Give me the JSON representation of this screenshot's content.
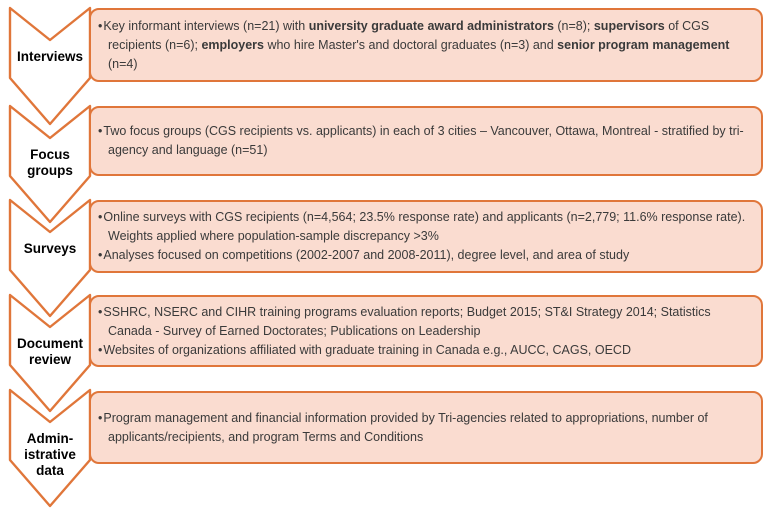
{
  "colors": {
    "outline": "#e0763a",
    "box_fill": "#fadcd0",
    "body_text": "#3a3a3a",
    "label_text": "#000000"
  },
  "rows": [
    {
      "label": "Interviews",
      "bullets": [
        {
          "segments": [
            {
              "text": "Key informant interviews (n=21) with ",
              "bold": false
            },
            {
              "text": "university graduate award administrators",
              "bold": true
            },
            {
              "text": " (n=8); ",
              "bold": false
            },
            {
              "text": "supervisors",
              "bold": true
            },
            {
              "text": " of CGS recipients (n=6); ",
              "bold": false
            },
            {
              "text": "employers",
              "bold": true
            },
            {
              "text": " who hire Master's and doctoral graduates (n=3) and ",
              "bold": false
            },
            {
              "text": "senior program management",
              "bold": true
            },
            {
              "text": " (n=4)",
              "bold": false
            }
          ]
        }
      ]
    },
    {
      "label": "Focus groups",
      "bullets": [
        {
          "text": "Two focus groups (CGS recipients vs. applicants) in each of 3 cities – Vancouver, Ottawa, Montreal - stratified by tri-agency and language (n=51)"
        }
      ]
    },
    {
      "label": "Surveys",
      "bullets": [
        {
          "text": "Online surveys with CGS recipients (n=4,564; 23.5% response rate) and applicants (n=2,779; 11.6% response rate). Weights applied where population-sample discrepancy >3%"
        },
        {
          "text": "Analyses focused on competitions (2002-2007 and 2008-2011), degree level, and area of study"
        }
      ]
    },
    {
      "label": "Document review",
      "bullets": [
        {
          "text": "SSHRC, NSERC and CIHR training programs evaluation reports; Budget 2015; ST&I Strategy 2014; Statistics Canada - Survey of Earned Doctorates; Publications on Leadership"
        },
        {
          "text": "Websites of organizations affiliated with graduate training in Canada e.g., AUCC, CAGS, OECD"
        }
      ]
    },
    {
      "label": "Admin-istrative data",
      "bullets": [
        {
          "text": "Program management and financial information provided by Tri-agencies related to appropriations, number of applicants/recipients, and program Terms and Conditions"
        }
      ]
    }
  ]
}
